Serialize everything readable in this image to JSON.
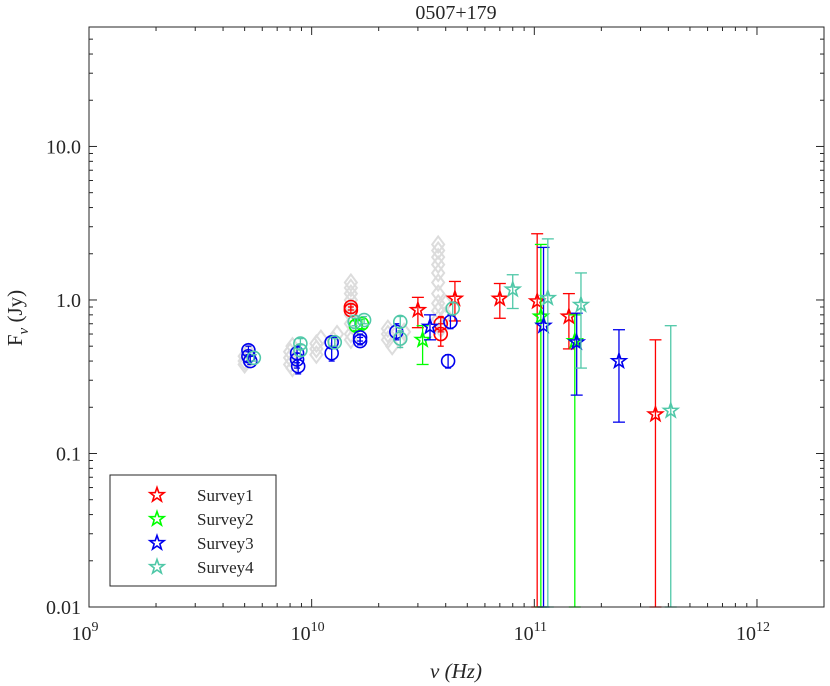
{
  "chart_data": {
    "type": "scatter",
    "title": "0507+179",
    "xlabel": "ν (Hz)",
    "ylabel": "F_ν (Jy)",
    "xscale": "log",
    "yscale": "log",
    "xlim": [
      1000000000.0,
      2000000000000.0
    ],
    "ylim": [
      0.01,
      60
    ],
    "x_ticks": [
      {
        "value": 1000000000.0,
        "base": "10",
        "exp": "9"
      },
      {
        "value": 10000000000.0,
        "base": "10",
        "exp": "10"
      },
      {
        "value": 100000000000.0,
        "base": "10",
        "exp": "11"
      },
      {
        "value": 1000000000000.0,
        "base": "10",
        "exp": "12"
      }
    ],
    "y_ticks": [
      {
        "value": 0.01,
        "label": "0.01"
      },
      {
        "value": 0.1,
        "label": "0.1"
      },
      {
        "value": 1,
        "label": "1.0"
      },
      {
        "value": 10,
        "label": "10.0"
      }
    ],
    "legend_position": "bottom-left",
    "historical": {
      "name": "historical",
      "color": "#dcdcdc",
      "points": [
        [
          5000000000.0,
          0.4
        ],
        [
          5000000000.0,
          0.43
        ],
        [
          5200000000.0,
          0.46
        ],
        [
          5000000000.0,
          0.38
        ],
        [
          8000000000.0,
          0.42
        ],
        [
          8000000000.0,
          0.46
        ],
        [
          8200000000.0,
          0.5
        ],
        [
          8000000000.0,
          0.38
        ],
        [
          8200000000.0,
          0.36
        ],
        [
          10500000000.0,
          0.48
        ],
        [
          10500000000.0,
          0.52
        ],
        [
          10500000000.0,
          0.44
        ],
        [
          11000000000.0,
          0.56
        ],
        [
          12500000000.0,
          0.55
        ],
        [
          13000000000.0,
          0.6
        ],
        [
          15000000000.0,
          0.6
        ],
        [
          15000000000.0,
          0.7
        ],
        [
          15000000000.0,
          0.8
        ],
        [
          15000000000.0,
          0.9
        ],
        [
          15000000000.0,
          1.0
        ],
        [
          15000000000.0,
          1.1
        ],
        [
          15000000000.0,
          1.2
        ],
        [
          15000000000.0,
          1.3
        ],
        [
          15000000000.0,
          0.55
        ],
        [
          22000000000.0,
          0.55
        ],
        [
          22000000000.0,
          0.6
        ],
        [
          23000000000.0,
          0.5
        ],
        [
          22000000000.0,
          0.65
        ],
        [
          25000000000.0,
          0.55
        ],
        [
          26000000000.0,
          0.62
        ],
        [
          37000000000.0,
          0.75
        ],
        [
          37000000000.0,
          0.85
        ],
        [
          37000000000.0,
          0.95
        ],
        [
          37000000000.0,
          1.1
        ],
        [
          37000000000.0,
          1.3
        ],
        [
          37000000000.0,
          1.5
        ],
        [
          37000000000.0,
          1.7
        ],
        [
          37000000000.0,
          1.9
        ],
        [
          37000000000.0,
          2.1
        ],
        [
          37000000000.0,
          2.3
        ],
        [
          38000000000.0,
          0.65
        ],
        [
          40000000000.0,
          0.8
        ],
        [
          40000000000.0,
          0.95
        ]
      ]
    },
    "series": [
      {
        "name": "Survey1",
        "color": "#ff0000",
        "circles": [
          {
            "x": 15000000000.0,
            "y": 0.9,
            "lo": 0.86,
            "hi": 0.94
          },
          {
            "x": 15000000000.0,
            "y": 0.86,
            "lo": 0.82,
            "hi": 0.9
          },
          {
            "x": 38000000000.0,
            "y": 0.6,
            "lo": 0.5,
            "hi": 0.7
          },
          {
            "x": 38000000000.0,
            "y": 0.7,
            "lo": 0.62,
            "hi": 0.78
          }
        ],
        "stars": [
          {
            "x": 30000000000.0,
            "y": 0.86,
            "lo": 0.66,
            "hi": 1.04
          },
          {
            "x": 44000000000.0,
            "y": 1.02,
            "lo": 0.73,
            "hi": 1.32
          },
          {
            "x": 70000000000.0,
            "y": 1.02,
            "lo": 0.76,
            "hi": 1.28
          },
          {
            "x": 103000000000.0,
            "y": 0.98,
            "lo": 0.01,
            "hi": 2.7
          },
          {
            "x": 143000000000.0,
            "y": 0.78,
            "lo": 0.48,
            "hi": 1.1
          },
          {
            "x": 350000000000.0,
            "y": 0.18,
            "lo": 0.01,
            "hi": 0.55
          }
        ]
      },
      {
        "name": "Survey2",
        "color": "#00ff00",
        "circles": [
          {
            "x": 15800000000.0,
            "y": 0.68,
            "lo": 0.63,
            "hi": 0.73
          },
          {
            "x": 16800000000.0,
            "y": 0.7,
            "lo": 0.65,
            "hi": 0.75
          }
        ],
        "stars": [
          {
            "x": 31500000000.0,
            "y": 0.55,
            "lo": 0.38,
            "hi": 0.68
          },
          {
            "x": 107000000000.0,
            "y": 0.78,
            "lo": 0.01,
            "hi": 2.3
          },
          {
            "x": 152000000000.0,
            "y": 0.54,
            "lo": 0.01,
            "hi": 0.8
          }
        ]
      },
      {
        "name": "Survey3",
        "color": "#0000ee",
        "circles": [
          {
            "x": 5200000000.0,
            "y": 0.47,
            "lo": 0.44,
            "hi": 0.5
          },
          {
            "x": 5200000000.0,
            "y": 0.43,
            "lo": 0.4,
            "hi": 0.46
          },
          {
            "x": 5300000000.0,
            "y": 0.4,
            "lo": 0.38,
            "hi": 0.43
          },
          {
            "x": 8600000000.0,
            "y": 0.45,
            "lo": 0.39,
            "hi": 0.5
          },
          {
            "x": 8600000000.0,
            "y": 0.41,
            "lo": 0.36,
            "hi": 0.45
          },
          {
            "x": 8700000000.0,
            "y": 0.37,
            "lo": 0.33,
            "hi": 0.41
          },
          {
            "x": 12300000000.0,
            "y": 0.53,
            "lo": 0.49,
            "hi": 0.57
          },
          {
            "x": 12300000000.0,
            "y": 0.45,
            "lo": 0.4,
            "hi": 0.5
          },
          {
            "x": 16500000000.0,
            "y": 0.57,
            "lo": 0.54,
            "hi": 0.6
          },
          {
            "x": 16500000000.0,
            "y": 0.54,
            "lo": 0.51,
            "hi": 0.57
          },
          {
            "x": 24000000000.0,
            "y": 0.62,
            "lo": 0.55,
            "hi": 0.7
          },
          {
            "x": 41000000000.0,
            "y": 0.4,
            "lo": 0.36,
            "hi": 0.44
          },
          {
            "x": 42000000000.0,
            "y": 0.72,
            "lo": 0.65,
            "hi": 0.8
          }
        ],
        "stars": [
          {
            "x": 34000000000.0,
            "y": 0.67,
            "lo": 0.55,
            "hi": 0.8
          },
          {
            "x": 110000000000.0,
            "y": 0.68,
            "lo": 0.01,
            "hi": 2.2
          },
          {
            "x": 155000000000.0,
            "y": 0.53,
            "lo": 0.24,
            "hi": 0.82
          },
          {
            "x": 240000000000.0,
            "y": 0.4,
            "lo": 0.16,
            "hi": 0.64
          }
        ]
      },
      {
        "name": "Survey4",
        "color": "#50c8a8",
        "circles": [
          {
            "x": 5500000000.0,
            "y": 0.42,
            "lo": 0.4,
            "hi": 0.44
          },
          {
            "x": 8900000000.0,
            "y": 0.52,
            "lo": 0.48,
            "hi": 0.56
          },
          {
            "x": 8900000000.0,
            "y": 0.47,
            "lo": 0.43,
            "hi": 0.51
          },
          {
            "x": 12700000000.0,
            "y": 0.53,
            "lo": 0.5,
            "hi": 0.56
          },
          {
            "x": 15600000000.0,
            "y": 0.72,
            "lo": 0.68,
            "hi": 0.76
          },
          {
            "x": 17200000000.0,
            "y": 0.74,
            "lo": 0.7,
            "hi": 0.78
          },
          {
            "x": 25000000000.0,
            "y": 0.72,
            "lo": 0.66,
            "hi": 0.78
          },
          {
            "x": 25000000000.0,
            "y": 0.56,
            "lo": 0.49,
            "hi": 0.63
          },
          {
            "x": 43000000000.0,
            "y": 0.88,
            "lo": 0.8,
            "hi": 0.96
          }
        ],
        "stars": [
          {
            "x": 80000000000.0,
            "y": 1.17,
            "lo": 0.88,
            "hi": 1.46
          },
          {
            "x": 115000000000.0,
            "y": 1.03,
            "lo": 0.01,
            "hi": 2.5
          },
          {
            "x": 162000000000.0,
            "y": 0.93,
            "lo": 0.36,
            "hi": 1.5
          },
          {
            "x": 410000000000.0,
            "y": 0.19,
            "lo": 0.01,
            "hi": 0.68
          }
        ]
      }
    ]
  }
}
